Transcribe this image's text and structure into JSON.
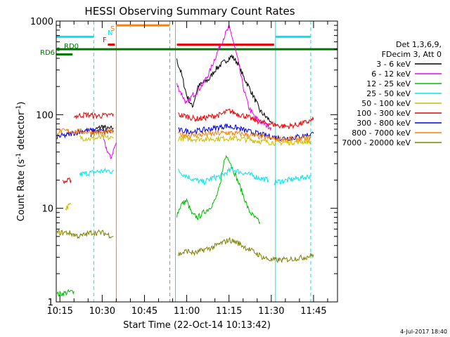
{
  "chart_data": {
    "type": "line",
    "title": "HESSI Observing Summary Count Rates",
    "xlabel": "Start Time (22-Oct-14 10:13:42)",
    "ylabel": "Count Rate (s",
    "ylabel_sup1": "-1",
    "ylabel_mid": " detector",
    "ylabel_sup2": "-1",
    "ylabel_end": ")",
    "x_ticks": [
      "10:15",
      "10:30",
      "10:45",
      "11:00",
      "11:15",
      "11:30",
      "11:45"
    ],
    "x_tick_minutes": [
      15,
      30,
      45,
      60,
      75,
      90,
      105
    ],
    "xlim_minutes": [
      13.7,
      113.5
    ],
    "y_scale": "log",
    "ylim": [
      1,
      1000
    ],
    "y_ticks": [
      "1",
      "10",
      "100",
      "1000"
    ],
    "footer_date": "4-Jul-2017 18:40",
    "legend_header": [
      "Det 1,3,6,9,",
      "FDecim 3, Att 0"
    ],
    "colors": {
      "bg": "#ffffff",
      "axis": "#000000",
      "cyan": "#00e5ee",
      "orange": "#ff7f00",
      "red": "#ee0000",
      "green": "#00bb00",
      "darkgreen": "#007700",
      "magenta": "#ee00ee",
      "gold": "#ccbb00",
      "blue": "#0000dd",
      "olive": "#808000"
    },
    "series": [
      {
        "name": "3 - 6 keV",
        "color": "#000000",
        "segments": [
          [
            [
              26,
              62
            ],
            [
              28,
              70
            ],
            [
              30,
              75
            ],
            [
              32,
              70
            ],
            [
              34,
              72
            ]
          ],
          [
            [
              56.5,
              380
            ],
            [
              58,
              280
            ],
            [
              60,
              160
            ],
            [
              62,
              120
            ],
            [
              64,
              200
            ],
            [
              66,
              220
            ],
            [
              68,
              240
            ],
            [
              70,
              300
            ],
            [
              72,
              340
            ],
            [
              74,
              380
            ],
            [
              76,
              420
            ],
            [
              78,
              360
            ],
            [
              80,
              260
            ],
            [
              82,
              200
            ],
            [
              84,
              150
            ],
            [
              86,
              110
            ],
            [
              88,
              95
            ],
            [
              90,
              85
            ]
          ]
        ]
      },
      {
        "name": "6 - 12 keV",
        "color": "#ee00ee",
        "segments": [
          [
            [
              30,
              60
            ],
            [
              31,
              48
            ],
            [
              32,
              40
            ],
            [
              33,
              34
            ],
            [
              34,
              42
            ],
            [
              35,
              50
            ]
          ],
          [
            [
              56.5,
              210
            ],
            [
              58,
              170
            ],
            [
              60,
              130
            ],
            [
              62,
              160
            ],
            [
              64,
              180
            ],
            [
              66,
              220
            ],
            [
              68,
              280
            ],
            [
              70,
              400
            ],
            [
              72,
              560
            ],
            [
              74,
              760
            ],
            [
              75,
              850
            ],
            [
              76,
              700
            ],
            [
              78,
              400
            ],
            [
              80,
              200
            ],
            [
              82,
              120
            ],
            [
              84,
              95
            ],
            [
              86,
              85
            ],
            [
              88,
              78
            ],
            [
              90,
              73
            ]
          ]
        ]
      },
      {
        "name": "12 - 25 keV",
        "color": "#00bb00",
        "segments": [
          [
            [
              14,
              1.2
            ],
            [
              20,
              1.3
            ]
          ],
          [
            [
              56.5,
              8.5
            ],
            [
              58,
              11
            ],
            [
              60,
              12
            ],
            [
              62,
              8.5
            ],
            [
              64,
              8
            ],
            [
              66,
              9
            ],
            [
              68,
              10
            ],
            [
              70,
              12
            ],
            [
              72,
              18
            ],
            [
              73,
              30
            ],
            [
              74,
              36
            ],
            [
              75,
              34
            ],
            [
              76,
              28
            ],
            [
              78,
              20
            ],
            [
              80,
              14
            ],
            [
              82,
              9.5
            ],
            [
              84,
              8
            ],
            [
              86,
              7
            ]
          ]
        ]
      },
      {
        "name": "25 - 50 keV",
        "color": "#00e5ee",
        "segments": [
          [
            [
              22,
              23
            ],
            [
              26,
              24
            ],
            [
              30,
              25
            ],
            [
              34,
              25
            ]
          ],
          [
            [
              57,
              25
            ],
            [
              60,
              22
            ],
            [
              63,
              20
            ],
            [
              66,
              19
            ],
            [
              69,
              21
            ],
            [
              72,
              22
            ],
            [
              74,
              24
            ],
            [
              76,
              26
            ],
            [
              78,
              25
            ],
            [
              82,
              23
            ],
            [
              86,
              21
            ],
            [
              89,
              20
            ]
          ],
          [
            [
              91,
              19
            ],
            [
              96,
              20
            ],
            [
              100,
              21
            ],
            [
              104,
              22
            ]
          ]
        ]
      },
      {
        "name": "50 - 100 keV",
        "color": "#ccbb00",
        "segments": [
          [
            [
              17,
              10
            ],
            [
              19,
              11
            ]
          ],
          [
            [
              22,
              57
            ],
            [
              26,
              55
            ],
            [
              30,
              57
            ],
            [
              34,
              56
            ]
          ],
          [
            [
              57,
              56
            ],
            [
              62,
              55
            ],
            [
              68,
              55
            ],
            [
              74,
              56
            ],
            [
              80,
              55
            ],
            [
              86,
              52
            ],
            [
              92,
              50
            ],
            [
              98,
              51
            ],
            [
              104,
              52
            ]
          ]
        ]
      },
      {
        "name": "100 - 300 keV",
        "color": "#ee0000",
        "segments": [
          [
            [
              16,
              19
            ],
            [
              19,
              20
            ]
          ],
          [
            [
              20,
              96
            ],
            [
              24,
              100
            ],
            [
              28,
              97
            ],
            [
              32,
              98
            ],
            [
              34,
              102
            ]
          ],
          [
            [
              57,
              100
            ],
            [
              60,
              96
            ],
            [
              63,
              90
            ],
            [
              66,
              92
            ],
            [
              69,
              96
            ],
            [
              72,
              100
            ],
            [
              75,
              110
            ],
            [
              78,
              102
            ],
            [
              81,
              96
            ],
            [
              84,
              88
            ],
            [
              87,
              82
            ],
            [
              90,
              80
            ],
            [
              93,
              76
            ],
            [
              96,
              75
            ],
            [
              99,
              78
            ],
            [
              102,
              82
            ],
            [
              105,
              88
            ]
          ]
        ]
      },
      {
        "name": "300 - 800 keV",
        "color": "#0000dd",
        "segments": [
          [
            [
              14,
              58
            ],
            [
              17,
              60
            ],
            [
              20,
              64
            ],
            [
              24,
              68
            ],
            [
              28,
              67
            ],
            [
              32,
              66
            ],
            [
              34,
              68
            ]
          ],
          [
            [
              57,
              68
            ],
            [
              62,
              66
            ],
            [
              68,
              70
            ],
            [
              74,
              76
            ],
            [
              78,
              72
            ],
            [
              82,
              66
            ],
            [
              86,
              62
            ],
            [
              90,
              58
            ],
            [
              94,
              56
            ],
            [
              98,
              57
            ],
            [
              102,
              60
            ],
            [
              105,
              63
            ]
          ]
        ]
      },
      {
        "name": "800 - 7000 keV",
        "color": "#ff7f00",
        "segments": [
          [
            [
              14,
              66
            ],
            [
              18,
              67
            ],
            [
              22,
              66
            ],
            [
              26,
              65
            ],
            [
              30,
              64
            ],
            [
              34,
              66
            ]
          ],
          [
            [
              57,
              62
            ],
            [
              62,
              60
            ],
            [
              68,
              62
            ],
            [
              74,
              64
            ],
            [
              80,
              62
            ],
            [
              86,
              58
            ],
            [
              92,
              55
            ],
            [
              98,
              55
            ],
            [
              104,
              56
            ]
          ]
        ]
      },
      {
        "name": "7000 - 20000 keV",
        "color": "#808000",
        "segments": [
          [
            [
              14,
              5.5
            ],
            [
              18,
              5.5
            ],
            [
              22,
              5.0
            ],
            [
              26,
              5.5
            ],
            [
              30,
              5.5
            ],
            [
              34,
              5.0
            ]
          ],
          [
            [
              57,
              3.2
            ],
            [
              60,
              3.5
            ],
            [
              63,
              3.3
            ],
            [
              66,
              3.6
            ],
            [
              69,
              3.8
            ],
            [
              72,
              4.2
            ],
            [
              75,
              4.6
            ],
            [
              78,
              4.3
            ],
            [
              81,
              3.8
            ],
            [
              84,
              3.4
            ],
            [
              87,
              3.0
            ],
            [
              90,
              2.8
            ],
            [
              94,
              2.8
            ],
            [
              98,
              2.9
            ],
            [
              102,
              3.0
            ],
            [
              105,
              3.2
            ]
          ]
        ]
      }
    ],
    "flag_bars": [
      {
        "label": "",
        "color": "#00e5ee",
        "y": 680,
        "x": [
          13.7,
          27
        ]
      },
      {
        "label": "",
        "color": "#00e5ee",
        "y": 680,
        "x": [
          91.5,
          104
        ]
      },
      {
        "label": "S",
        "color": "#ff7f00",
        "y": 900,
        "x": [
          35,
          54
        ]
      },
      {
        "label": "N",
        "color": "#00e5ee",
        "y": 720,
        "x": [
          31,
          31
        ]
      },
      {
        "label": "F",
        "color": "#ee0000",
        "y": 560,
        "x": [
          32,
          34.5
        ]
      },
      {
        "label": "",
        "color": "#ee0000",
        "y": 560,
        "x": [
          56.5,
          91
        ]
      },
      {
        "label": "RD0",
        "color": "#007700",
        "y": 500,
        "x": [
          13.7,
          113.5
        ]
      },
      {
        "label": "RD6",
        "color": "#007700",
        "y": 440,
        "x": [
          13.7,
          19.5
        ]
      }
    ],
    "vertical_lines": [
      {
        "x": 13.7,
        "color": "#00e5ee",
        "style": "solid"
      },
      {
        "x": 27,
        "color": "#00e5ee",
        "style": "dashed"
      },
      {
        "x": 35,
        "color": "#ff7f00",
        "style": "solid"
      },
      {
        "x": 54,
        "color": "#ff7f00",
        "style": "dashed"
      },
      {
        "x": 56,
        "color": "#00e5ee",
        "style": "solid"
      },
      {
        "x": 91.5,
        "color": "#00e5ee",
        "style": "solid"
      },
      {
        "x": 104,
        "color": "#00e5ee",
        "style": "dashed"
      }
    ],
    "markers": [
      {
        "label": "S",
        "color": "#ff7f00"
      },
      {
        "label": "N",
        "color": "#00e5ee"
      },
      {
        "label": "F",
        "color": "#ee0000"
      },
      {
        "label": "RD0",
        "color": "#007700"
      },
      {
        "label": "RD6",
        "color": "#007700"
      }
    ]
  }
}
